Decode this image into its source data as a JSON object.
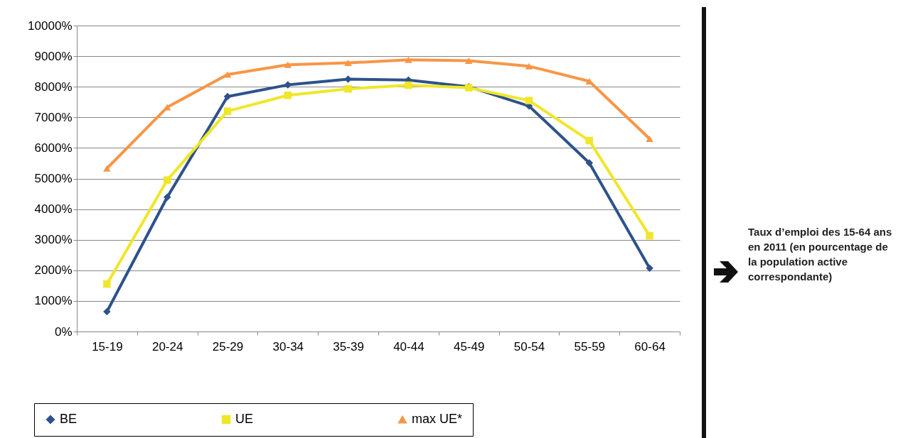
{
  "chart_data": {
    "type": "line",
    "categories": [
      "15-19",
      "20-24",
      "25-29",
      "30-34",
      "35-39",
      "40-44",
      "45-49",
      "50-54",
      "55-59",
      "60-64"
    ],
    "series": [
      {
        "name": "BE",
        "color": "#2e528a",
        "marker": "diamond",
        "values": [
          650,
          4390,
          7680,
          8060,
          8250,
          8220,
          8000,
          7370,
          5510,
          2070
        ]
      },
      {
        "name": "UE",
        "color": "#f0e62a",
        "marker": "square",
        "values": [
          1550,
          4950,
          7200,
          7720,
          7930,
          8050,
          7970,
          7550,
          6240,
          3130
        ]
      },
      {
        "name": "max UE*",
        "color": "#f79646",
        "marker": "triangle",
        "values": [
          5330,
          7330,
          8400,
          8720,
          8780,
          8880,
          8850,
          8670,
          8180,
          6300
        ]
      }
    ],
    "ylim": [
      0,
      10000
    ],
    "yticks": [
      {
        "value": 0,
        "label": "0%"
      },
      {
        "value": 1000,
        "label": "1000%"
      },
      {
        "value": 2000,
        "label": "2000%"
      },
      {
        "value": 3000,
        "label": "3000%"
      },
      {
        "value": 4000,
        "label": "4000%"
      },
      {
        "value": 5000,
        "label": "5000%"
      },
      {
        "value": 6000,
        "label": "6000%"
      },
      {
        "value": 7000,
        "label": "7000%"
      },
      {
        "value": 8000,
        "label": "8000%"
      },
      {
        "value": 9000,
        "label": "9000%"
      },
      {
        "value": 10000,
        "label": "10000%"
      }
    ],
    "grid": "y",
    "legend": "bottom",
    "annotations": [
      "Taux d’emploi des 15-64 ans en 2011 (en pourcentage de la population active correspondante)"
    ]
  }
}
